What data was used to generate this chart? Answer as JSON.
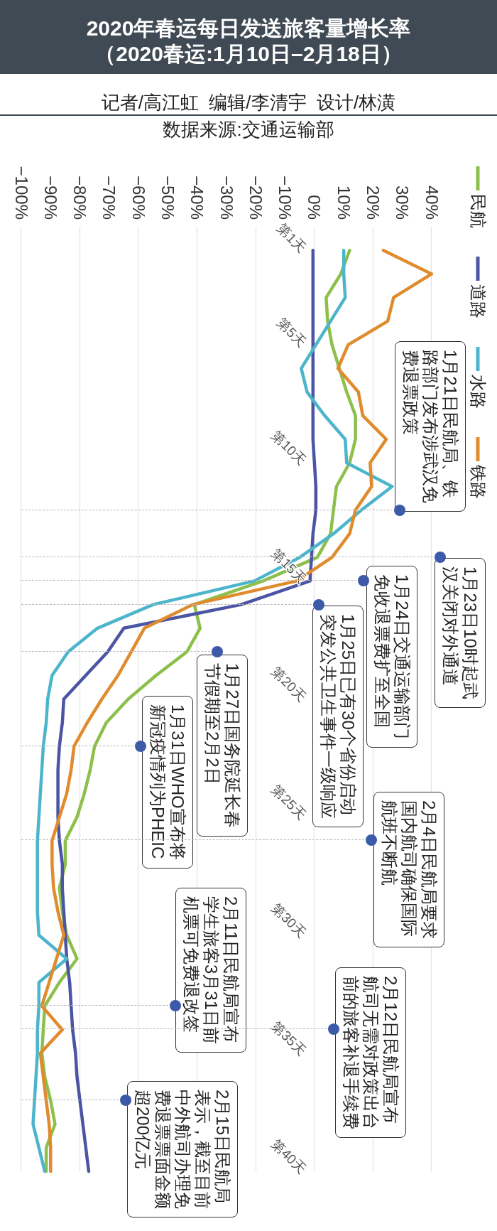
{
  "chart_data": {
    "type": "line",
    "orientation": "horizontal",
    "title": "2020年春运每日发送旅客量增长率",
    "subtitle": "（2020春运:1月10日–2月18日）",
    "annotations": [
      "记者/高江虹  编辑/李清宇  设计/林潢",
      "数据来源:交通运输部",
      "1月21日民航局、铁路部门发布涉武汉免费退票政策",
      "1月23日10时起武汉关闭对外通道",
      "1月24日交通运输部门免收退票费扩至全国",
      "1月25日已有30个省份启动突发公共卫生事件一级响应",
      "1月27日国务院延长春节假期至2月2日",
      "1月31日WHO宣布将新冠疫情列为PHEIC",
      "2月4日民航局要求国内航司确保国际航班不断航",
      "2月11日民航局宣布学生旅客3月31日前机票可免费退改签",
      "2月12日民航局宣布航司无需对政策出台前的旅客补退手续费",
      "2月15日民航局表示，截至目前中外航司办理免费退票票面金额超200亿元"
    ],
    "categories": [
      "第1天",
      null,
      null,
      null,
      "第5天",
      null,
      null,
      null,
      null,
      "第10天",
      null,
      null,
      null,
      null,
      "第15天",
      null,
      null,
      null,
      null,
      "第20天",
      null,
      null,
      null,
      null,
      "第25天",
      null,
      null,
      null,
      null,
      "第30天",
      null,
      null,
      null,
      null,
      "第35天",
      null,
      null,
      null,
      null,
      "第40天"
    ],
    "xlim": [
      -100,
      40
    ],
    "xticks": [
      {
        "value": -100,
        "label": "−100%"
      },
      {
        "value": -90,
        "label": "−90%"
      },
      {
        "value": -80,
        "label": "−80%"
      },
      {
        "value": -70,
        "label": "−70%"
      },
      {
        "value": -60,
        "label": "−60%"
      },
      {
        "value": -50,
        "label": "−50%"
      },
      {
        "value": -40,
        "label": "−40%"
      },
      {
        "value": -30,
        "label": "−30%"
      },
      {
        "value": -20,
        "label": "−20%"
      },
      {
        "value": -10,
        "label": "−10%"
      },
      {
        "value": 0,
        "label": "0%"
      },
      {
        "value": 10,
        "label": "10%"
      },
      {
        "value": 20,
        "label": "20%"
      },
      {
        "value": 30,
        "label": "30%"
      },
      {
        "value": 40,
        "label": "40%"
      }
    ],
    "grid": "x",
    "legend": "top right",
    "marker": "none",
    "series": [
      {
        "name": "民航",
        "color": "#8cc04b",
        "values": [
          12,
          9,
          4,
          4.5,
          6,
          8.5,
          11,
          14,
          14,
          12,
          7.5,
          6.5,
          5.5,
          1,
          -17.5,
          -41,
          -39,
          -43.5,
          -54,
          -63.5,
          -71,
          -75,
          -76.5,
          -78.5,
          -81,
          -85,
          -85,
          -87,
          -86,
          -84.5,
          -81,
          -87,
          -92,
          -92.5,
          -93,
          -92,
          -90,
          -88.5,
          -91.5,
          -91.5
        ]
      },
      {
        "name": "道路",
        "color": "#4b55a3",
        "values": [
          -0.5,
          -0.5,
          -0.5,
          -0.5,
          -0.5,
          -0.5,
          -0.5,
          -0.5,
          -0.5,
          0,
          0.5,
          0.5,
          -0.5,
          -1,
          -1.5,
          -25,
          -65,
          -70.5,
          -78,
          -85.5,
          -86,
          -87,
          -87.5,
          -87.5,
          -87.5,
          -87,
          -86,
          -86,
          -85.5,
          -85,
          -84.5,
          -83.5,
          -83,
          -82.5,
          -81.5,
          -81,
          -80,
          -79,
          -78,
          -77
        ]
      },
      {
        "name": "水路",
        "color": "#4db5cb",
        "values": [
          10,
          10,
          10.5,
          5.5,
          0.5,
          -4.5,
          -2.5,
          3.5,
          10.5,
          11,
          26.5,
          16,
          6.5,
          -5,
          -20.5,
          -55,
          -74,
          -84,
          -89.5,
          -91,
          -91.5,
          -92.5,
          -93,
          -93.5,
          -94,
          -94.5,
          -94.5,
          -94.5,
          -94.5,
          -94,
          -84.5,
          -94,
          -94,
          -94.5,
          -94.5,
          -95,
          -95.5,
          -96,
          -94,
          -92
        ]
      },
      {
        "name": "铁路",
        "color": "#e08b2d",
        "values": [
          23.5,
          40,
          27,
          25,
          11.5,
          8,
          15,
          16.5,
          24.5,
          19,
          19.5,
          14,
          12,
          6,
          -6,
          -41.5,
          -58,
          -62.5,
          -67,
          -72.5,
          -77.5,
          -82,
          -83,
          -84.5,
          -87,
          -89.5,
          -89.5,
          -89,
          -87.5,
          -85.5,
          -88,
          -90.5,
          -93,
          -86,
          -93.5,
          -92.5,
          -91.5,
          -90.5,
          -90,
          -90
        ]
      }
    ]
  }
}
